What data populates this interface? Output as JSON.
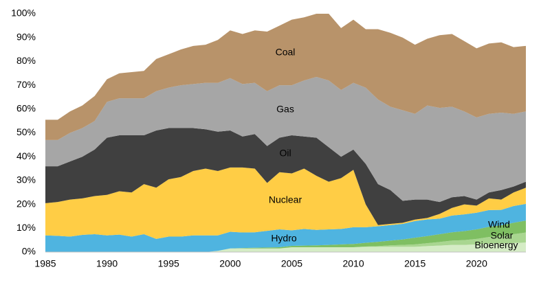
{
  "chart_data": {
    "type": "stacked_area",
    "x": [
      1985,
      1986,
      1987,
      1988,
      1989,
      1990,
      1991,
      1992,
      1993,
      1994,
      1995,
      1996,
      1997,
      1998,
      1999,
      2000,
      2001,
      2002,
      2003,
      2004,
      2005,
      2006,
      2007,
      2008,
      2009,
      2010,
      2011,
      2012,
      2013,
      2014,
      2015,
      2016,
      2017,
      2018,
      2019,
      2020,
      2021,
      2022,
      2023,
      2024
    ],
    "xlim": [
      1985,
      2024
    ],
    "xticks": [
      1985,
      1990,
      1995,
      2000,
      2005,
      2010,
      2015,
      2020
    ],
    "ylim": [
      0,
      100
    ],
    "yticks": [
      {
        "value": 0,
        "label": "0%"
      },
      {
        "value": 10,
        "label": "10%"
      },
      {
        "value": 20,
        "label": "20%"
      },
      {
        "value": 30,
        "label": "30%"
      },
      {
        "value": 40,
        "label": "40%"
      },
      {
        "value": 50,
        "label": "50%"
      },
      {
        "value": 60,
        "label": "60%"
      },
      {
        "value": 70,
        "label": "70%"
      },
      {
        "value": 80,
        "label": "80%"
      },
      {
        "value": 90,
        "label": "90%"
      },
      {
        "value": 100,
        "label": "100%"
      }
    ],
    "series": [
      {
        "name": "Bioenergy",
        "color": "#d5ecc5",
        "values": [
          0,
          0,
          0,
          0,
          0,
          0,
          0,
          0,
          0,
          0,
          0,
          0,
          0,
          0,
          0.5,
          1.5,
          1.5,
          1.5,
          1.5,
          1.5,
          2,
          2,
          2,
          2,
          2,
          2,
          2.2,
          2.2,
          2.2,
          2.2,
          2.2,
          2.5,
          2.7,
          3,
          3,
          3.2,
          3.5,
          3.5,
          3.8,
          4
        ]
      },
      {
        "name": "Solar",
        "color": "#a9d690",
        "values": [
          0,
          0,
          0,
          0,
          0,
          0,
          0,
          0,
          0,
          0,
          0,
          0,
          0,
          0,
          0,
          0,
          0,
          0,
          0,
          0,
          0,
          0,
          0,
          0,
          0,
          0,
          0.1,
          0.3,
          0.6,
          0.8,
          1,
          1.2,
          1.5,
          1.8,
          2,
          2.3,
          2.8,
          3.2,
          3.7,
          4.2
        ]
      },
      {
        "name": "Wind",
        "color": "#7fbf62",
        "values": [
          0,
          0,
          0,
          0,
          0,
          0,
          0,
          0,
          0,
          0,
          0,
          0,
          0,
          0,
          0,
          0,
          0.2,
          0.3,
          0.4,
          0.5,
          0.6,
          0.7,
          0.8,
          1,
          1.2,
          1.4,
          1.6,
          1.8,
          2,
          2.3,
          2.8,
          3,
          3.3,
          3.5,
          3.8,
          4,
          4.3,
          4.5,
          4.8,
          5
        ]
      },
      {
        "name": "Hydro",
        "color": "#4fb4e0",
        "values": [
          7,
          6.8,
          6.5,
          7.2,
          7.5,
          7,
          7.3,
          6.5,
          7.5,
          5.5,
          6.5,
          6.5,
          7,
          7,
          6.5,
          7,
          6.5,
          6.5,
          7,
          7.5,
          6.5,
          7,
          6.5,
          6.5,
          6.5,
          7,
          6.5,
          6.5,
          6.5,
          6.5,
          7,
          7,
          6.5,
          7,
          7,
          7,
          7,
          6.5,
          7,
          7
        ]
      },
      {
        "name": "Nuclear",
        "color": "#ffcd45",
        "values": [
          13.5,
          14.2,
          15.5,
          15.3,
          16,
          17,
          18.2,
          18.5,
          21,
          21.5,
          24,
          25,
          27,
          28,
          27,
          27,
          27.3,
          26.7,
          20.1,
          24,
          23.9,
          25.3,
          22.7,
          20,
          21.3,
          24.1,
          9.6,
          0.5,
          0.5,
          0.5,
          0.6,
          0.6,
          2,
          3.2,
          4.2,
          3,
          4.9,
          4.3,
          5.7,
          6.8
        ]
      },
      {
        "name": "Oil",
        "color": "#404040",
        "values": [
          15.5,
          15,
          16,
          17.5,
          19.5,
          24,
          23.5,
          24,
          20.5,
          24,
          21.5,
          20.5,
          18,
          16.5,
          16.5,
          15.5,
          13,
          14.5,
          15.5,
          14.5,
          16,
          13.5,
          16,
          14.5,
          9,
          8.5,
          17,
          17.2,
          14.2,
          9.2,
          8.4,
          7.7,
          5,
          4.5,
          3.5,
          2.5,
          2.5,
          4,
          2.5,
          2.5
        ]
      },
      {
        "name": "Gas",
        "color": "#a6a6a6",
        "values": [
          11,
          11,
          12,
          12,
          12,
          15,
          15.5,
          15.5,
          15.5,
          16.5,
          17,
          18,
          18.5,
          19.5,
          20.5,
          22,
          22,
          21.5,
          23,
          22,
          21,
          23.5,
          25.5,
          28,
          28,
          28,
          32,
          35.5,
          35,
          38,
          36,
          39.5,
          39.5,
          38,
          35.5,
          34.5,
          33,
          32.5,
          30.5,
          29.5
        ]
      },
      {
        "name": "Coal",
        "color": "#b8936a",
        "values": [
          8.5,
          8.5,
          9,
          9.5,
          10.5,
          9.5,
          10.5,
          11,
          11.5,
          13.5,
          14,
          15,
          16,
          16,
          18,
          20,
          21,
          22,
          25,
          25,
          27.5,
          26.5,
          26.5,
          28,
          26,
          26.5,
          24.5,
          29.5,
          31,
          30.5,
          29,
          28,
          30.5,
          30.5,
          29.5,
          29,
          29.5,
          29.5,
          28,
          27.5
        ]
      }
    ]
  }
}
